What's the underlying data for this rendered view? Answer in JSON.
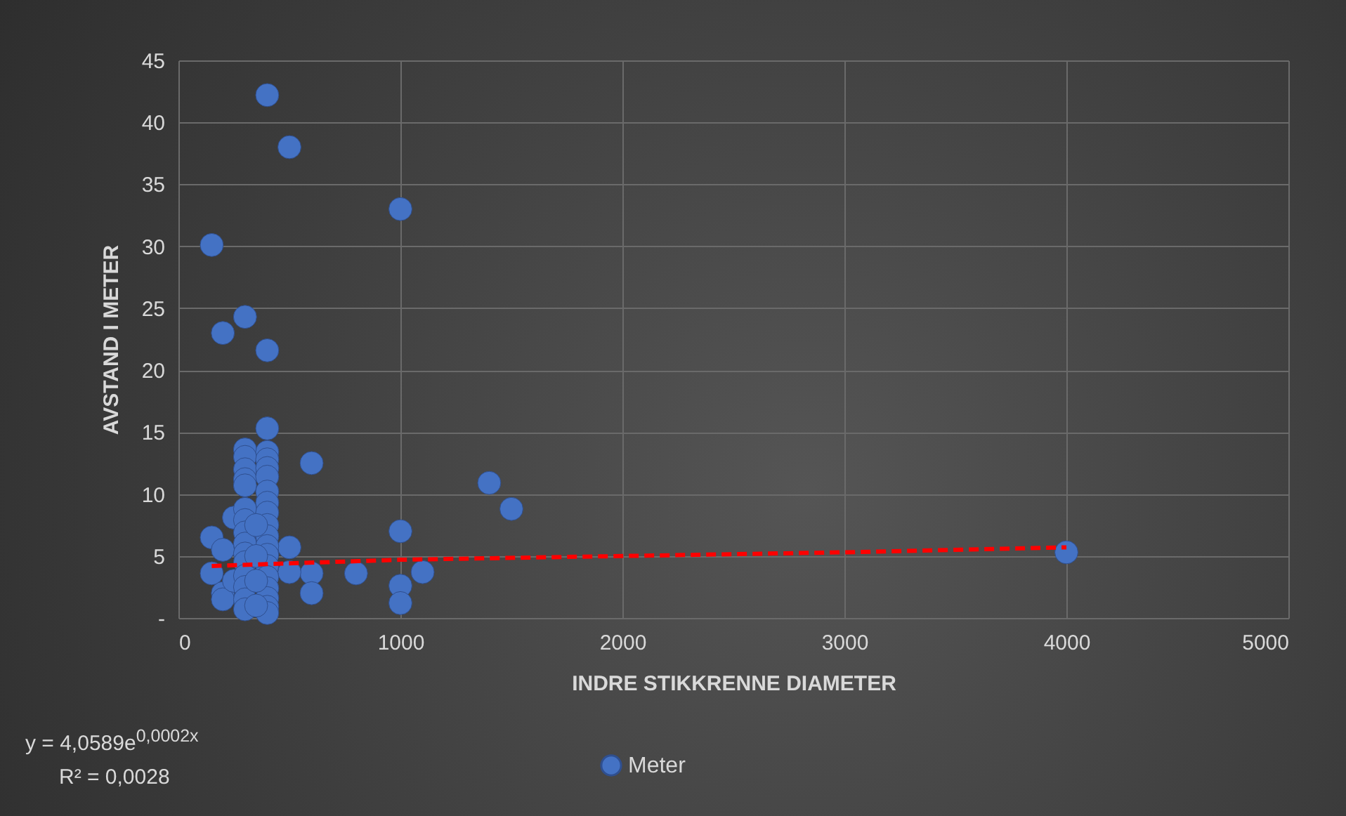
{
  "chart_data": {
    "type": "scatter",
    "xlabel": "INDRE STIKKRENNE DIAMETER",
    "ylabel": "AVSTAND I METER",
    "xlim": [
      0,
      5000
    ],
    "xticks": [
      0,
      1000,
      2000,
      3000,
      4000,
      5000
    ],
    "ylim": [
      0,
      45
    ],
    "yticks": [
      {
        "value": 0,
        "label": "-"
      },
      5,
      10,
      15,
      20,
      25,
      30,
      35,
      40,
      45
    ],
    "grid": true,
    "legend": "bottom",
    "annotations": [
      "y = 4,0589e$^{0,0002x}$",
      "R² = 0,0028"
    ],
    "series": [
      {
        "name": "Meter",
        "marker": "circle",
        "color": "#4472c4",
        "x": [
          400,
          500,
          1000,
          150,
          300,
          200,
          400,
          400,
          600,
          1400,
          1500,
          1000,
          4000,
          1100,
          1000,
          1000,
          800,
          600,
          600,
          500,
          500,
          150,
          150,
          200,
          200,
          200,
          250,
          250,
          300,
          300,
          300,
          300,
          300,
          300,
          300,
          300,
          300,
          300,
          300,
          300,
          300,
          300,
          300,
          400,
          400,
          400,
          400,
          400,
          400,
          400,
          400,
          400,
          400,
          400,
          400,
          400,
          400,
          400,
          400,
          400,
          350,
          350,
          350,
          350
        ],
        "values": [
          42.2,
          38,
          33,
          30.1,
          24.3,
          23,
          21.6,
          15.3,
          12.5,
          10.9,
          8.8,
          7,
          5.3,
          3.7,
          2.6,
          1.2,
          3.6,
          3.6,
          2,
          5.7,
          3.7,
          6.5,
          3.6,
          5.5,
          2,
          1.5,
          8.1,
          3,
          13.6,
          13,
          12,
          11.2,
          10.7,
          8.8,
          7.9,
          6.9,
          6,
          5.2,
          4.5,
          3.4,
          2.5,
          1.5,
          0.7,
          13.4,
          12.8,
          12.1,
          11.4,
          10.2,
          9.3,
          8.5,
          7.5,
          6.6,
          5.8,
          5.1,
          4.2,
          3.3,
          2.4,
          1.6,
          0.9,
          0.4,
          7.5,
          5,
          3,
          1
        ]
      },
      {
        "type": "line",
        "color": "#ff0000",
        "line_style": "dashed",
        "x": [
          150,
          1000,
          2000,
          3000,
          4000
        ],
        "values": [
          4.2,
          4.7,
          5.0,
          5.3,
          5.7
        ]
      }
    ]
  }
}
